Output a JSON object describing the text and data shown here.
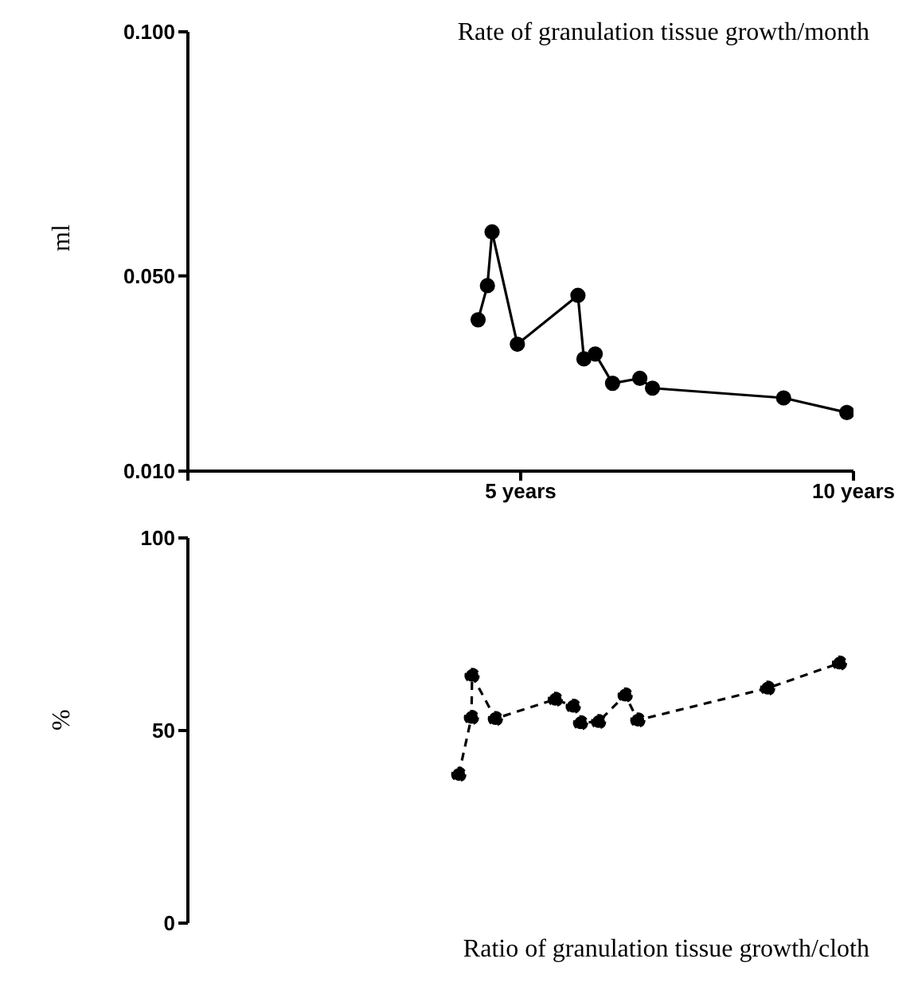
{
  "chart_data": [
    {
      "type": "line",
      "title": "Rate of granulation tissue growth/month",
      "ylabel": "ml",
      "xlim": [
        0,
        10
      ],
      "xticks": [
        {
          "value": 0,
          "label": null
        },
        {
          "value": 5,
          "label": "5 years"
        },
        {
          "value": 10,
          "label": "10 years"
        }
      ],
      "ylim": [
        0.01,
        0.1
      ],
      "yticks": [
        {
          "value": 0.01,
          "label": "0.010"
        },
        {
          "value": 0.05,
          "label": "0.050"
        },
        {
          "value": 0.1,
          "label": "0.100"
        }
      ],
      "marker": "circle",
      "line_style": "solid",
      "grid": false,
      "series": [
        {
          "color": "#000000",
          "x": [
            4.36,
            4.5,
            4.57,
            4.95,
            5.86,
            5.95,
            6.12,
            6.38,
            6.79,
            6.98,
            8.95,
            9.9
          ],
          "values": [
            0.041,
            0.048,
            0.059,
            0.036,
            0.046,
            0.033,
            0.034,
            0.028,
            0.029,
            0.027,
            0.025,
            0.022
          ]
        }
      ]
    },
    {
      "type": "line",
      "title": "Ratio of granulation tissue growth/cloth",
      "ylabel": "%",
      "xlim": [
        0,
        10
      ],
      "ylim": [
        0,
        100
      ],
      "yticks": [
        0,
        50,
        100
      ],
      "tick_labels": "y",
      "marker": "circle",
      "line_style": "dashed",
      "grid": false,
      "series": [
        {
          "color": "#000000",
          "x": [
            4.07,
            4.26,
            4.27,
            4.62,
            5.52,
            5.79,
            5.9,
            6.17,
            6.57,
            6.76,
            8.71,
            9.79
          ],
          "values": [
            38.6,
            53.4,
            64.3,
            53.1,
            58.1,
            56.3,
            52,
            52.3,
            59.2,
            52.7,
            61,
            67.5
          ]
        }
      ]
    }
  ]
}
